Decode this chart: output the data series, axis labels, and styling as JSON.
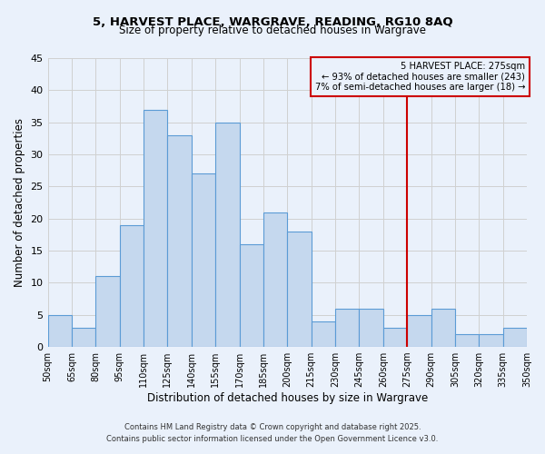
{
  "title1": "5, HARVEST PLACE, WARGRAVE, READING, RG10 8AQ",
  "title2": "Size of property relative to detached houses in Wargrave",
  "xlabel": "Distribution of detached houses by size in Wargrave",
  "ylabel": "Number of detached properties",
  "bin_edges": [
    50,
    65,
    80,
    95,
    110,
    125,
    140,
    155,
    170,
    185,
    200,
    215,
    230,
    245,
    260,
    275,
    290,
    305,
    320,
    335,
    350
  ],
  "bar_heights": [
    5,
    3,
    11,
    19,
    37,
    33,
    27,
    35,
    16,
    21,
    18,
    4,
    6,
    6,
    3,
    5,
    6,
    2,
    2,
    3
  ],
  "bar_color": "#c5d8ee",
  "bar_edge_color": "#5b9bd5",
  "grid_color": "#d0d0d0",
  "bg_color": "#eaf1fb",
  "vline_x": 275,
  "vline_color": "#cc0000",
  "annotation_line1": "5 HARVEST PLACE: 275sqm",
  "annotation_line2": "← 93% of detached houses are smaller (243)",
  "annotation_line3": "7% of semi-detached houses are larger (18) →",
  "annotation_box_edge": "#cc0000",
  "footer1": "Contains HM Land Registry data © Crown copyright and database right 2025.",
  "footer2": "Contains public sector information licensed under the Open Government Licence v3.0.",
  "ylim": [
    0,
    45
  ],
  "yticks": [
    0,
    5,
    10,
    15,
    20,
    25,
    30,
    35,
    40,
    45
  ],
  "tick_labels": [
    "50sqm",
    "65sqm",
    "80sqm",
    "95sqm",
    "110sqm",
    "125sqm",
    "140sqm",
    "155sqm",
    "170sqm",
    "185sqm",
    "200sqm",
    "215sqm",
    "230sqm",
    "245sqm",
    "260sqm",
    "275sqm",
    "290sqm",
    "305sqm",
    "320sqm",
    "335sqm",
    "350sqm"
  ]
}
